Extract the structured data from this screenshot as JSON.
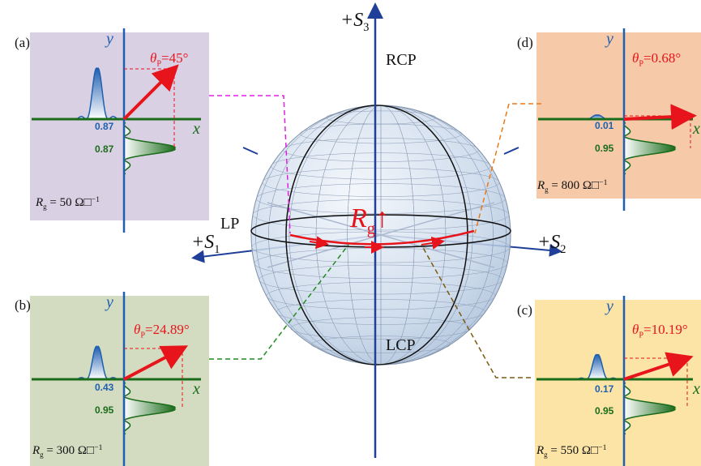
{
  "sphere": {
    "s3": {
      "text": "+S",
      "sub": "3"
    },
    "s1": {
      "text": "+S",
      "sub": "1"
    },
    "s2": {
      "text": "+S",
      "sub": "2"
    },
    "rcp": "RCP",
    "lcp": "LCP",
    "lp": "LP",
    "rg": {
      "symbol": "R",
      "sub": "g",
      "text": "↑"
    }
  },
  "panels": [
    {
      "label": "(a)",
      "y_axis": "y",
      "x_axis": "x",
      "theta": {
        "symbol": "θ",
        "sub": "P",
        "text": "=45°"
      },
      "x_value": "0.87",
      "y_value": "0.87",
      "rg": {
        "symbol": "R",
        "sub": "g",
        "text": " = 50 Ω□",
        "sup": "−1"
      }
    },
    {
      "label": "(b)",
      "y_axis": "y",
      "x_axis": "x",
      "theta": {
        "symbol": "θ",
        "sub": "P",
        "text": "=24.89°"
      },
      "x_value": "0.43",
      "y_value": "0.95",
      "rg": {
        "symbol": "R",
        "sub": "g",
        "text": " = 300 Ω□",
        "sup": "−1"
      }
    },
    {
      "label": "(c)",
      "y_axis": "y",
      "x_axis": "x",
      "theta": {
        "symbol": "θ",
        "sub": "P",
        "text": "=10.19°"
      },
      "x_value": "0.17",
      "y_value": "0.95",
      "rg": {
        "symbol": "R",
        "sub": "g",
        "text": " = 550 Ω□",
        "sup": "−1"
      }
    },
    {
      "label": "(d)",
      "y_axis": "y",
      "x_axis": "x",
      "theta": {
        "symbol": "θ",
        "sub": "P",
        "text": "=0.68°"
      },
      "x_value": "0.01",
      "y_value": "0.95",
      "rg": {
        "symbol": "R",
        "sub": "g",
        "text": " = 800 Ω□",
        "sup": "−1"
      }
    }
  ]
}
